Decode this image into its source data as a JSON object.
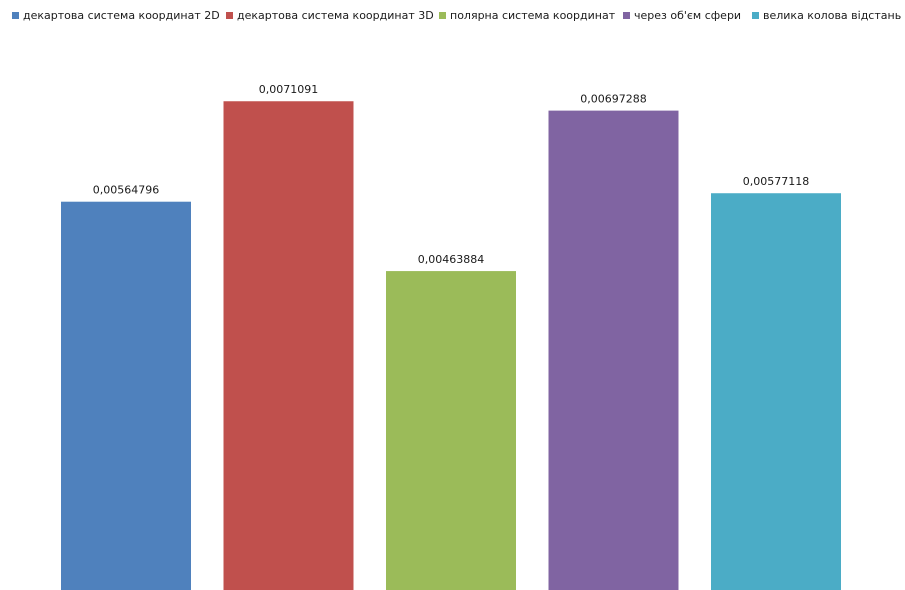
{
  "chart_data": {
    "type": "bar",
    "title": "",
    "xlabel": "",
    "ylabel": "",
    "ylim": [
      0,
      0.008
    ],
    "grid": false,
    "legend_position": "top",
    "categories": [
      "декартова система координат 2D",
      "декартова система координат 3D",
      "полярна система координат",
      "через об'єм сфери",
      "велика колова відстань"
    ],
    "values": [
      0.00564796,
      0.0071091,
      0.00463884,
      0.00697288,
      0.00577118
    ],
    "value_labels": [
      "0,00564796",
      "0,0071091",
      "0,00463884",
      "0,00697288",
      "0,00577118"
    ],
    "colors": [
      "#4f81bd",
      "#c0504d",
      "#9bbb59",
      "#8064a2",
      "#4bacc6"
    ]
  }
}
